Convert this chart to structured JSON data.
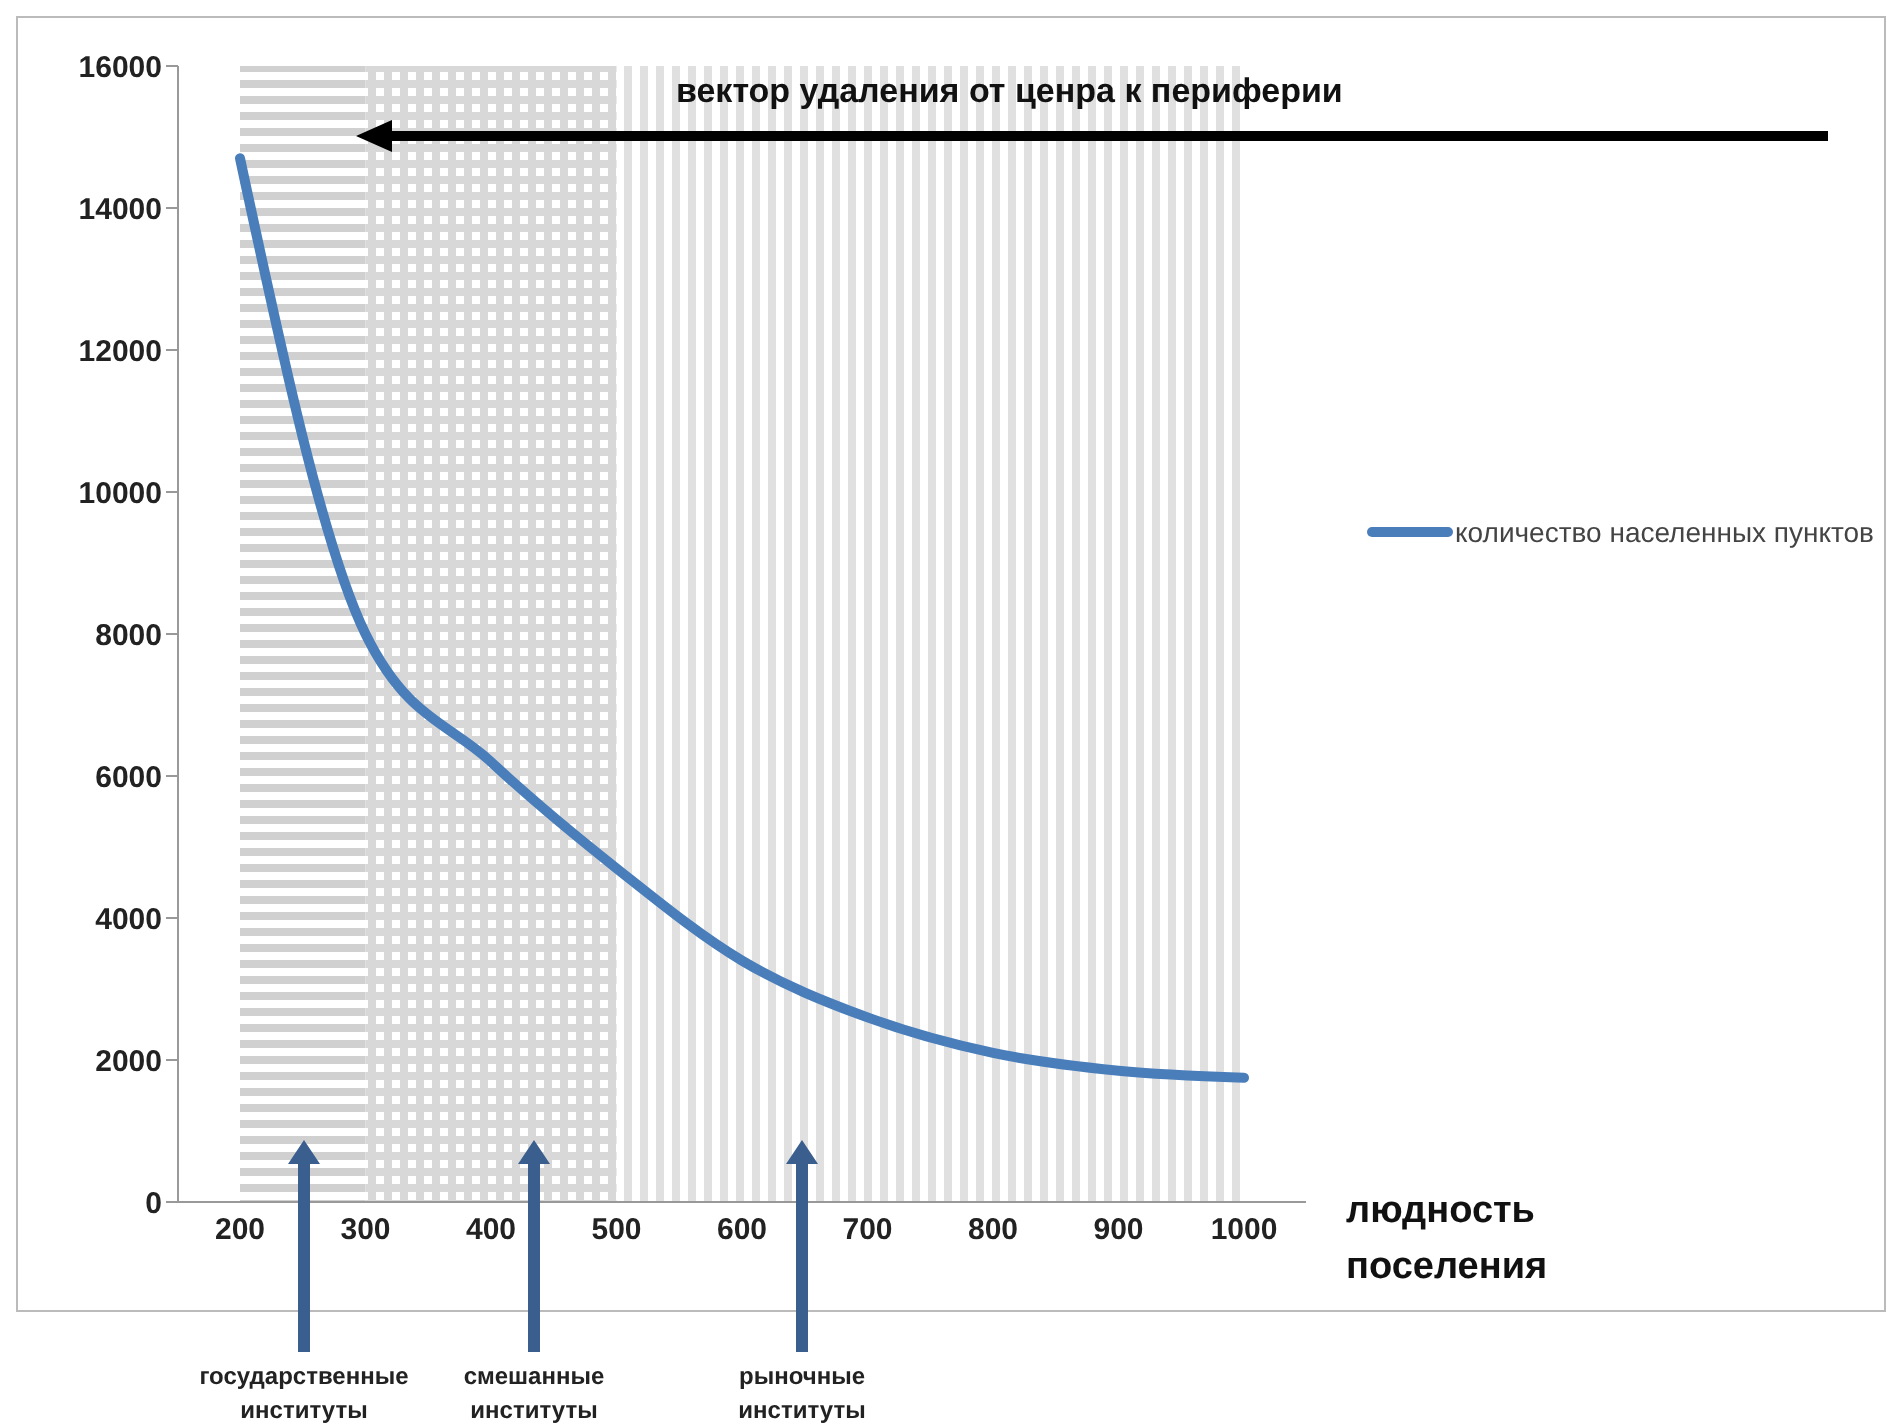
{
  "chart_data": {
    "type": "line",
    "categories": [
      "200",
      "300",
      "400",
      "500",
      "600",
      "700",
      "800",
      "900",
      "1000"
    ],
    "series": [
      {
        "name": "количество населенных пунктов",
        "color": "#4a7ebb",
        "values": [
          14700,
          8000,
          6200,
          4700,
          3400,
          2600,
          2100,
          1850,
          1750
        ]
      }
    ],
    "xlabel": "людность поселения",
    "ylim": [
      0,
      16000
    ],
    "yticks": [
      0,
      2000,
      4000,
      6000,
      8000,
      10000,
      12000,
      14000,
      16000
    ],
    "grid": false,
    "legend": "right",
    "marker": "none",
    "line_style": "solid",
    "bands": [
      {
        "axis": "x",
        "from": "200",
        "to": "300",
        "color": "#d0d0d0"
      },
      {
        "axis": "x",
        "from": "300",
        "to": "500",
        "color": "#d8d8d8"
      },
      {
        "axis": "x",
        "from": "500",
        "to": "1000",
        "color": "#e0e0e0"
      }
    ],
    "annotations": [
      "вектор удаления от ценра к периферии",
      "государственные институты",
      "смешанные институты",
      "рыночные институты"
    ]
  }
}
